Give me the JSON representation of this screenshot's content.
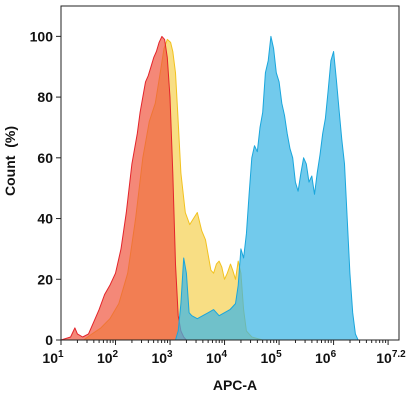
{
  "chart_data": {
    "type": "area",
    "xlabel": "APC-A",
    "ylabel": "Count  (%)",
    "x_scale": "log",
    "xlim": [
      10,
      15848932
    ],
    "ylim": [
      0,
      110
    ],
    "x_ticks": [
      {
        "base": "10",
        "exp": "1",
        "value": 10
      },
      {
        "base": "10",
        "exp": "2",
        "value": 100
      },
      {
        "base": "10",
        "exp": "3",
        "value": 1000
      },
      {
        "base": "10",
        "exp": "4",
        "value": 10000
      },
      {
        "base": "10",
        "exp": "5",
        "value": 100000
      },
      {
        "base": "10",
        "exp": "6",
        "value": 1000000
      },
      {
        "base": "10",
        "exp": "7.2",
        "value": 15848932
      }
    ],
    "y_ticks": [
      0,
      20,
      40,
      60,
      80,
      100
    ],
    "grid": false,
    "legend": "none",
    "series": [
      {
        "color": "#f2c21f",
        "fill_opacity": 0.55,
        "stroke": "#f2c21f",
        "points": [
          [
            10,
            0
          ],
          [
            26,
            0
          ],
          [
            37,
            2
          ],
          [
            54,
            4
          ],
          [
            79,
            7
          ],
          [
            115,
            12
          ],
          [
            167,
            22
          ],
          [
            234,
            40
          ],
          [
            316,
            60
          ],
          [
            417,
            72
          ],
          [
            537,
            78
          ],
          [
            661,
            88
          ],
          [
            776,
            96
          ],
          [
            891,
            99
          ],
          [
            1023,
            98
          ],
          [
            1122,
            95
          ],
          [
            1259,
            88
          ],
          [
            1380,
            75
          ],
          [
            1585,
            55
          ],
          [
            1905,
            42
          ],
          [
            2291,
            38
          ],
          [
            2692,
            40
          ],
          [
            3162,
            42
          ],
          [
            3802,
            36
          ],
          [
            4467,
            33
          ],
          [
            5012,
            28
          ],
          [
            5623,
            23
          ],
          [
            6310,
            22
          ],
          [
            7079,
            25
          ],
          [
            7943,
            26
          ],
          [
            8913,
            24
          ],
          [
            10000,
            20
          ],
          [
            11220,
            22
          ],
          [
            12882,
            25
          ],
          [
            14125,
            23
          ],
          [
            15849,
            20
          ],
          [
            17783,
            26
          ],
          [
            19953,
            22
          ],
          [
            22387,
            10
          ],
          [
            25119,
            3
          ],
          [
            31623,
            1
          ],
          [
            50119,
            0
          ],
          [
            100000,
            0
          ]
        ]
      },
      {
        "color": "#f0553f",
        "fill_opacity": 0.7,
        "stroke": "#e3242b",
        "points": [
          [
            10,
            0
          ],
          [
            15,
            1
          ],
          [
            18,
            4
          ],
          [
            20,
            2
          ],
          [
            25,
            1
          ],
          [
            32,
            2
          ],
          [
            40,
            6
          ],
          [
            50,
            10
          ],
          [
            63,
            15
          ],
          [
            79,
            18
          ],
          [
            100,
            22
          ],
          [
            126,
            30
          ],
          [
            158,
            42
          ],
          [
            200,
            58
          ],
          [
            251,
            68
          ],
          [
            282,
            75
          ],
          [
            316,
            80
          ],
          [
            355,
            85
          ],
          [
            398,
            87
          ],
          [
            447,
            90
          ],
          [
            501,
            93
          ],
          [
            562,
            95
          ],
          [
            631,
            98
          ],
          [
            708,
            100
          ],
          [
            794,
            99
          ],
          [
            891,
            93
          ],
          [
            1000,
            80
          ],
          [
            1122,
            55
          ],
          [
            1259,
            25
          ],
          [
            1413,
            8
          ],
          [
            1585,
            3
          ],
          [
            1778,
            1
          ],
          [
            2000,
            0
          ],
          [
            3162,
            0
          ]
        ]
      },
      {
        "color": "#3cb6e4",
        "fill_opacity": 0.72,
        "stroke": "#1aa6dc",
        "points": [
          [
            10,
            0
          ],
          [
            1259,
            0
          ],
          [
            1413,
            3
          ],
          [
            1585,
            12
          ],
          [
            1778,
            27
          ],
          [
            2000,
            22
          ],
          [
            2239,
            9
          ],
          [
            2512,
            8
          ],
          [
            3162,
            7
          ],
          [
            3981,
            8
          ],
          [
            5012,
            9
          ],
          [
            6310,
            10
          ],
          [
            7943,
            8
          ],
          [
            10000,
            9
          ],
          [
            12589,
            10
          ],
          [
            15849,
            12
          ],
          [
            17783,
            18
          ],
          [
            19953,
            30
          ],
          [
            22387,
            27
          ],
          [
            25119,
            35
          ],
          [
            28184,
            48
          ],
          [
            31623,
            60
          ],
          [
            35481,
            64
          ],
          [
            39811,
            62
          ],
          [
            44668,
            70
          ],
          [
            50119,
            75
          ],
          [
            56234,
            88
          ],
          [
            63096,
            92
          ],
          [
            70795,
            100
          ],
          [
            79433,
            96
          ],
          [
            89125,
            88
          ],
          [
            100000,
            85
          ],
          [
            112202,
            78
          ],
          [
            125893,
            74
          ],
          [
            141254,
            68
          ],
          [
            158489,
            63
          ],
          [
            177828,
            60
          ],
          [
            199526,
            52
          ],
          [
            223872,
            49
          ],
          [
            251189,
            55
          ],
          [
            281838,
            60
          ],
          [
            316228,
            58
          ],
          [
            354813,
            52
          ],
          [
            398107,
            54
          ],
          [
            446684,
            48
          ],
          [
            501187,
            55
          ],
          [
            562341,
            61
          ],
          [
            630957,
            68
          ],
          [
            707946,
            73
          ],
          [
            794328,
            82
          ],
          [
            891251,
            92
          ],
          [
            1000000,
            95
          ],
          [
            1122018,
            86
          ],
          [
            1258925,
            76
          ],
          [
            1412538,
            66
          ],
          [
            1584893,
            58
          ],
          [
            1778279,
            40
          ],
          [
            1995262,
            22
          ],
          [
            2238721,
            9
          ],
          [
            2511886,
            2
          ],
          [
            2818383,
            0
          ],
          [
            3981072,
            0
          ]
        ]
      }
    ]
  }
}
